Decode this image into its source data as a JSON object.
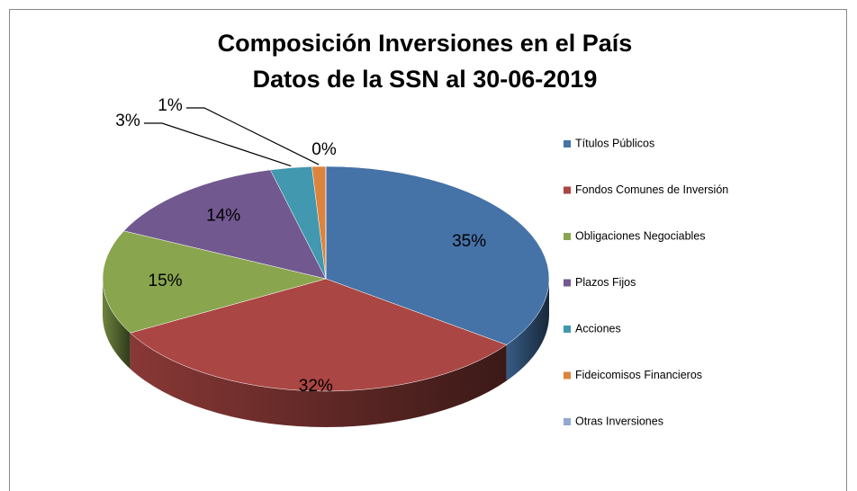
{
  "chart_data": {
    "type": "pie",
    "title": "Composición Inversiones en el País",
    "subtitle": "Datos de la SSN al 30-06-2019",
    "categories": [
      "Títulos Públicos",
      "Fondos Comunes de Inversión",
      "Obligaciones Negociables",
      "Plazos Fijos",
      "Acciones",
      "Fideicomisos Financieros",
      "Otras Inversiones"
    ],
    "values": [
      35,
      32,
      15,
      14,
      3,
      1,
      0
    ],
    "value_labels": [
      "35%",
      "32%",
      "15%",
      "14%",
      "3%",
      "1%",
      "0%"
    ],
    "colors": [
      "#4572a7",
      "#aa4643",
      "#89a54e",
      "#71588f",
      "#4198af",
      "#db843d",
      "#93a9cf"
    ],
    "legend": "right"
  }
}
